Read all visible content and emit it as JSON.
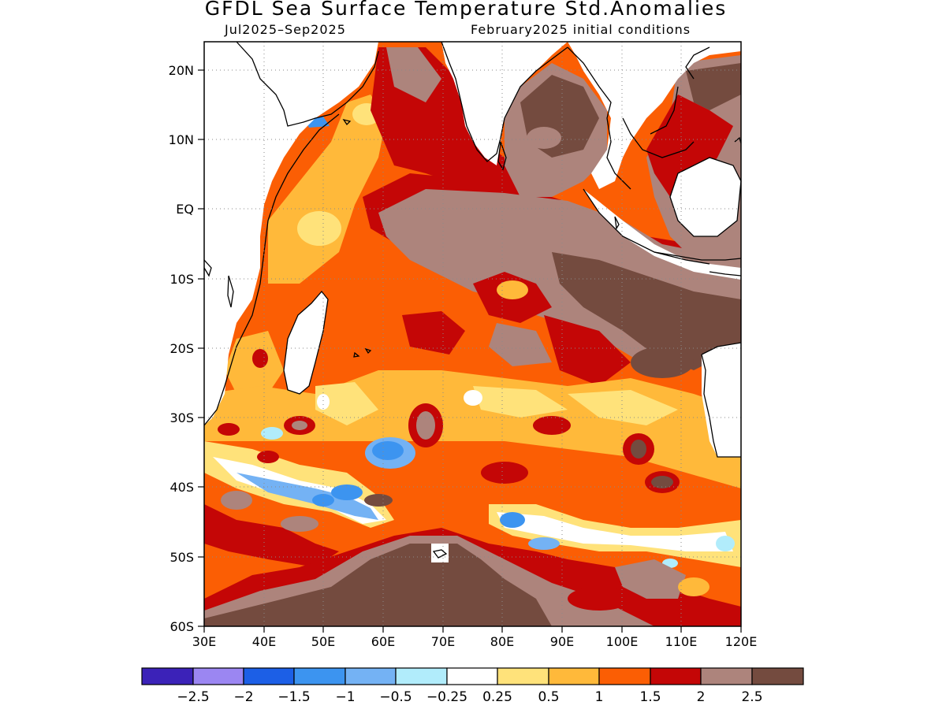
{
  "header": {
    "title": "GFDL Sea Surface Temperature Std.Anomalies",
    "period": "Jul2025–Sep2025",
    "init": "February2025 initial conditions"
  },
  "map": {
    "lat_labels": [
      "20N",
      "10N",
      "EQ",
      "10S",
      "20S",
      "30S",
      "40S",
      "50S",
      "60S"
    ],
    "lon_labels": [
      "30E",
      "40E",
      "50E",
      "60E",
      "70E",
      "80E",
      "90E",
      "100E",
      "110E",
      "120E"
    ],
    "region": "Indian Ocean",
    "lon_range": [
      30,
      120
    ],
    "lat_range": [
      -60,
      24
    ],
    "gridlines": true
  },
  "legend": {
    "colors": [
      "#3b22b8",
      "#9b86f2",
      "#1c5fe6",
      "#3c94f0",
      "#74b2f4",
      "#b1ecfb",
      "#ffffff",
      "#ffe27a",
      "#ffb93a",
      "#fb5e04",
      "#c40606",
      "#ad847c",
      "#744b3f"
    ],
    "labels": [
      "−2.5",
      "−2",
      "−1.5",
      "−1",
      "−0.5",
      "−0.25",
      "0.25",
      "0.5",
      "1",
      "1.5",
      "2",
      "2.5"
    ]
  }
}
